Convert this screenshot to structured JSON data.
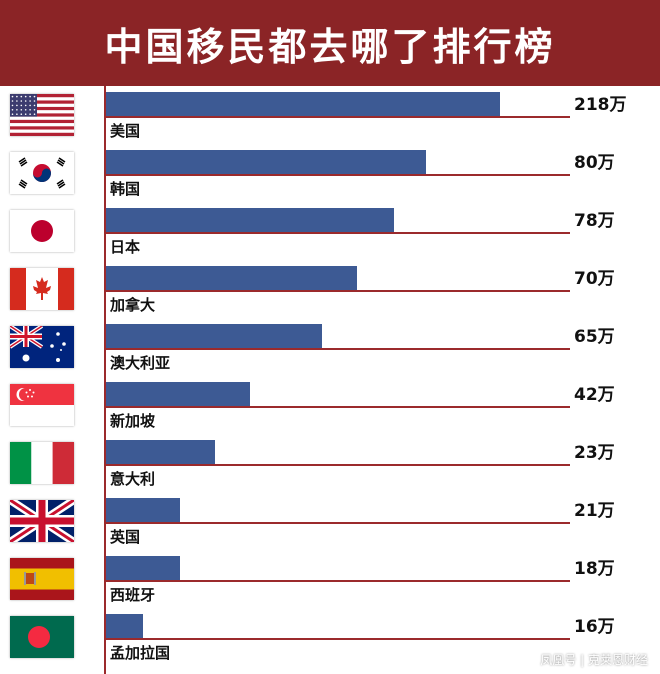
{
  "header": {
    "title": "中国移民都去哪了排行榜"
  },
  "watermark": "凤凰号 | 克莱恩财经",
  "colors": {
    "header_bg": "#8b2426",
    "bar": "#3d5a94",
    "axis_line": "#9b2a2c"
  },
  "chart_data": {
    "type": "bar",
    "orientation": "horizontal",
    "title": "中国移民都去哪了排行榜",
    "categories": [
      "美国",
      "韩国",
      "日本",
      "加拿大",
      "澳大利亚",
      "新加坡",
      "意大利",
      "英国",
      "西班牙",
      "孟加拉国"
    ],
    "values": [
      218,
      80,
      78,
      70,
      65,
      42,
      23,
      21,
      18,
      16
    ],
    "value_labels": [
      "218万",
      "80万",
      "78万",
      "70万",
      "65万",
      "42万",
      "23万",
      "21万",
      "18万",
      "16万"
    ],
    "bar_fractions": [
      0.85,
      0.69,
      0.62,
      0.54,
      0.465,
      0.31,
      0.235,
      0.16,
      0.16,
      0.08
    ],
    "flags": [
      "usa-flag",
      "korea-flag",
      "japan-flag",
      "canada-flag",
      "australia-flag",
      "singapore-flag",
      "italy-flag",
      "uk-flag",
      "spain-flag",
      "bangladesh-flag"
    ],
    "grid": false,
    "legend": "none"
  }
}
